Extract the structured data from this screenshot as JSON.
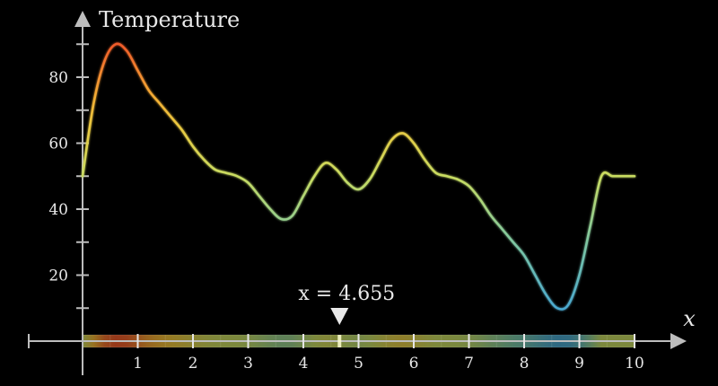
{
  "chart_data": {
    "type": "line",
    "ylabel": "Temperature",
    "xlabel": "x",
    "xlim": [
      0,
      10
    ],
    "ylim": [
      0,
      95
    ],
    "x_ticks": [
      1,
      2,
      3,
      4,
      5,
      6,
      7,
      8,
      9,
      10
    ],
    "y_ticks": [
      20,
      40,
      60,
      80
    ],
    "y_minor_step": 10,
    "color_scale": [
      "#4aa8d0",
      "#7cc7a4",
      "#c8dc62",
      "#f4c236",
      "#f05a2a"
    ],
    "series": [
      {
        "x": [
          0,
          0.2,
          0.4,
          0.6,
          0.8,
          1.0,
          1.2,
          1.4,
          1.6,
          1.8,
          2.0,
          2.2,
          2.4,
          2.6,
          2.8,
          3.0,
          3.2,
          3.4,
          3.6,
          3.8,
          4.0,
          4.2,
          4.4,
          4.6,
          4.8,
          5.0,
          5.2,
          5.4,
          5.6,
          5.8,
          6.0,
          6.2,
          6.4,
          6.6,
          6.8,
          7.0,
          7.2,
          7.4,
          7.6,
          7.8,
          8.0,
          8.2,
          8.4,
          8.6,
          8.8,
          9.0,
          9.2,
          9.4,
          9.6,
          9.8,
          10.0
        ],
        "y": [
          50,
          72,
          85,
          90,
          88,
          82,
          76,
          72,
          68,
          64,
          59,
          55,
          52,
          51,
          50,
          48,
          44,
          40,
          37,
          38,
          44,
          50,
          54,
          52,
          48,
          46,
          49,
          55,
          61,
          63,
          60,
          55,
          51,
          50,
          49,
          47,
          43,
          38,
          34,
          30,
          26,
          20,
          14,
          10,
          11,
          20,
          35,
          50,
          50,
          50,
          50
        ]
      }
    ],
    "marker": {
      "x": 4.655,
      "label": "x = 4.655"
    }
  }
}
